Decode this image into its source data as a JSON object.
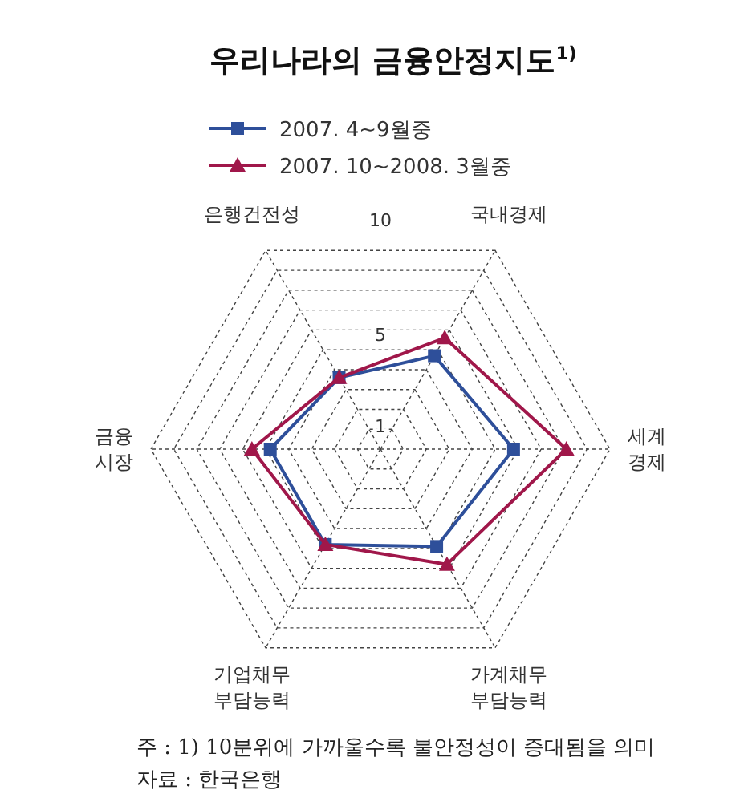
{
  "chart_data": {
    "type": "radar",
    "title": "우리나라의 금융안정지도$^{1)}$",
    "categories": [
      "국내경제",
      "세계\n경제",
      "가계채무\n부담능력",
      "기업채무\n부담능력",
      "금융\n시장",
      "은행건전성"
    ],
    "series": [
      {
        "name": "2007. 4~9월중",
        "color": "#2e4f9a",
        "marker": "square",
        "values": [
          4.7,
          5.8,
          4.9,
          4.8,
          4.8,
          3.6
        ]
      },
      {
        "name": "2007. 10~2008. 3월중",
        "color": "#a0174a",
        "marker": "triangle",
        "values": [
          5.6,
          8.1,
          5.8,
          4.8,
          5.6,
          3.6
        ]
      }
    ],
    "ylim": [
      0,
      10
    ],
    "yticks": [
      1,
      5,
      10
    ],
    "grid": true,
    "line_style": "solid",
    "legend": "top left",
    "annotations": [
      "주 : 1) 10분위에 가까울수록 불안정성이 증대됨을 의미",
      "자료 : 한국은행"
    ]
  }
}
